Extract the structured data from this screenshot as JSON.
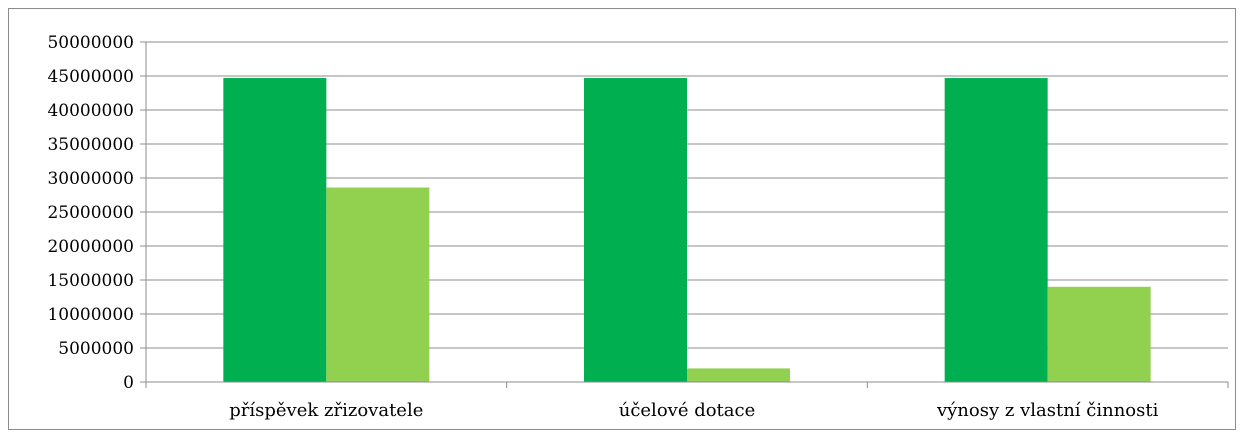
{
  "chart_data": {
    "type": "bar",
    "title": "",
    "xlabel": "",
    "ylabel": "",
    "categories": [
      "příspěvek zřizovatele",
      "účelové dotace",
      "výnosy z vlastní činnosti"
    ],
    "series": [
      {
        "values": [
          44700000,
          44700000,
          44700000
        ],
        "color": "#00b050"
      },
      {
        "values": [
          28600000,
          2000000,
          14000000
        ],
        "color": "#92d050"
      }
    ],
    "ylim": [
      0,
      50000000
    ],
    "yticks": [
      "0",
      "5000000",
      "10000000",
      "15000000",
      "20000000",
      "25000000",
      "30000000",
      "35000000",
      "40000000",
      "45000000",
      "50000000"
    ],
    "grid": true,
    "legend": "none"
  }
}
